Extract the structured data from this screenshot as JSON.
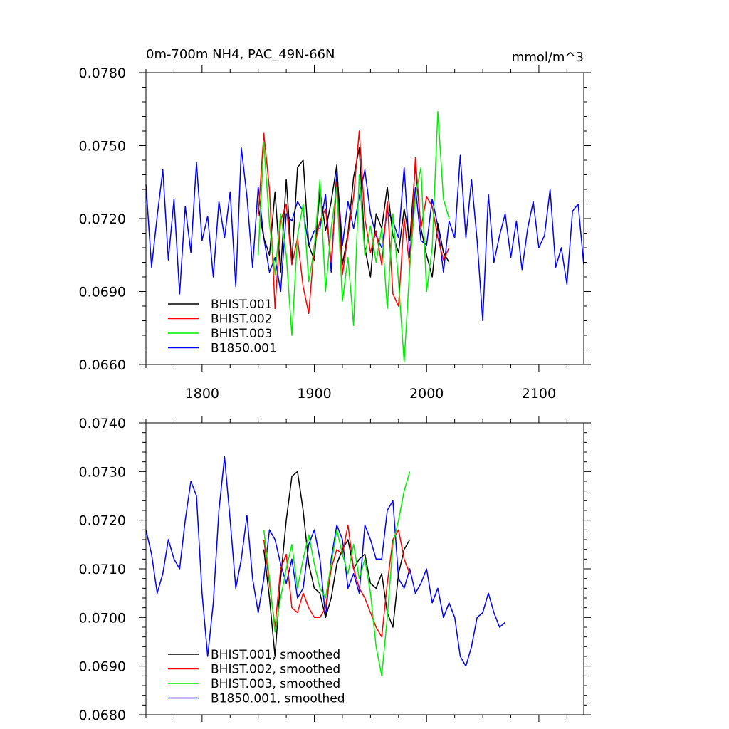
{
  "panels": [
    {
      "title_left": "0m-700m NH4, PAC_49N-66N",
      "title_right": "mmol/m^3",
      "y_ticks": [
        "0.0660",
        "0.0690",
        "0.0720",
        "0.0750",
        "0.0780"
      ],
      "x_ticks": [
        "1800",
        "1900",
        "2000",
        "2100"
      ],
      "legend": [
        "BHIST.001",
        "BHIST.002",
        "BHIST.003",
        "B1850.001"
      ]
    },
    {
      "y_ticks": [
        "0.0680",
        "0.0690",
        "0.0700",
        "0.0710",
        "0.0720",
        "0.0730",
        "0.0740"
      ],
      "legend": [
        "BHIST.001, smoothed",
        "BHIST.002, smoothed",
        "BHIST.003, smoothed",
        "B1850.001, smoothed"
      ]
    }
  ],
  "colors": {
    "BHIST.001": "#000000",
    "BHIST.002": "#ff0000",
    "BHIST.003": "#00ee00",
    "B1850.001": "#0000ff"
  },
  "chart_data": [
    {
      "type": "line",
      "title": "0m-700m NH4, PAC_49N-66N",
      "units": "mmol/m^3",
      "xlim": [
        1750,
        2140
      ],
      "ylim": [
        0.066,
        0.078
      ],
      "series": [
        {
          "name": "BHIST.001",
          "color": "#000000",
          "x_start": 1850,
          "x_step": 5,
          "values": [
            0.0725,
            0.0712,
            0.0705,
            0.0731,
            0.0698,
            0.0736,
            0.0702,
            0.0741,
            0.0744,
            0.0709,
            0.0703,
            0.0732,
            0.0715,
            0.0727,
            0.0742,
            0.0701,
            0.0714,
            0.0737,
            0.0749,
            0.0708,
            0.0696,
            0.0722,
            0.0716,
            0.0733,
            0.0713,
            0.0706,
            0.0724,
            0.0711,
            0.0742,
            0.0716,
            0.0705,
            0.0696,
            0.0718,
            0.0706,
            0.0702
          ]
        },
        {
          "name": "BHIST.002",
          "color": "#ff0000",
          "x_start": 1850,
          "x_step": 5,
          "values": [
            0.0721,
            0.0755,
            0.0732,
            0.0683,
            0.0719,
            0.0726,
            0.0701,
            0.0712,
            0.0692,
            0.0681,
            0.0709,
            0.0719,
            0.0724,
            0.0702,
            0.0735,
            0.0697,
            0.0713,
            0.0729,
            0.0756,
            0.072,
            0.0706,
            0.0715,
            0.0701,
            0.0727,
            0.0689,
            0.0684,
            0.072,
            0.07,
            0.0745,
            0.0716,
            0.0729,
            0.0725,
            0.0712,
            0.0703,
            0.0708
          ]
        },
        {
          "name": "BHIST.003",
          "color": "#00ee00",
          "x_start": 1850,
          "x_step": 5,
          "values": [
            0.0705,
            0.0751,
            0.0718,
            0.0697,
            0.0722,
            0.0705,
            0.0672,
            0.0713,
            0.0726,
            0.0694,
            0.0708,
            0.0736,
            0.069,
            0.0716,
            0.0733,
            0.0686,
            0.0704,
            0.0676,
            0.0738,
            0.0705,
            0.0717,
            0.0702,
            0.0716,
            0.0683,
            0.0722,
            0.0694,
            0.0661,
            0.07,
            0.0729,
            0.0741,
            0.069,
            0.0708,
            0.0764,
            0.0728,
            0.072
          ]
        },
        {
          "name": "B1850.001",
          "color": "#0000ff",
          "x_start": 1750,
          "x_step": 5,
          "values": [
            0.0734,
            0.07,
            0.0721,
            0.074,
            0.0703,
            0.0728,
            0.0689,
            0.0725,
            0.0706,
            0.0743,
            0.0711,
            0.0721,
            0.0696,
            0.0727,
            0.0712,
            0.0731,
            0.0692,
            0.0749,
            0.0729,
            0.07,
            0.0733,
            0.0712,
            0.0698,
            0.0704,
            0.069,
            0.0722,
            0.0719,
            0.0727,
            0.0723,
            0.0709,
            0.0715,
            0.0716,
            0.073,
            0.0698,
            0.074,
            0.0709,
            0.0727,
            0.0716,
            0.0729,
            0.074,
            0.0722,
            0.0713,
            0.0708,
            0.0723,
            0.0719,
            0.0712,
            0.0741,
            0.0704,
            0.0733,
            0.0711,
            0.0709,
            0.0728,
            0.0717,
            0.0698,
            0.0719,
            0.0712,
            0.0746,
            0.0712,
            0.0736,
            0.0711,
            0.0678,
            0.073,
            0.0702,
            0.0713,
            0.0722,
            0.0704,
            0.0719,
            0.0699,
            0.0716,
            0.0727,
            0.0708,
            0.0713,
            0.0732,
            0.07,
            0.0708,
            0.0693,
            0.0723,
            0.0726,
            0.0701
          ]
        }
      ]
    },
    {
      "type": "line",
      "xlim": [
        1750,
        2140
      ],
      "ylim": [
        0.068,
        0.074
      ],
      "series": [
        {
          "name": "BHIST.001, smoothed",
          "color": "#000000",
          "x_start": 1855,
          "x_step": 5,
          "values": [
            0.0714,
            0.0704,
            0.0692,
            0.0708,
            0.072,
            0.0729,
            0.073,
            0.0722,
            0.0711,
            0.0706,
            0.0705,
            0.07,
            0.0704,
            0.0711,
            0.0714,
            0.0716,
            0.071,
            0.0712,
            0.0713,
            0.0707,
            0.0706,
            0.0709,
            0.0701,
            0.0698,
            0.0709,
            0.0714,
            0.0716
          ]
        },
        {
          "name": "BHIST.002, smoothed",
          "color": "#ff0000",
          "x_start": 1855,
          "x_step": 5,
          "values": [
            0.0716,
            0.0707,
            0.0698,
            0.071,
            0.0713,
            0.0702,
            0.0701,
            0.0705,
            0.0702,
            0.07,
            0.07,
            0.0702,
            0.071,
            0.0714,
            0.0713,
            0.0719,
            0.071,
            0.0706,
            0.0704,
            0.0701,
            0.0698,
            0.0696,
            0.0707,
            0.0716,
            0.0718,
            0.0712,
            0.0709
          ]
        },
        {
          "name": "BHIST.003, smoothed",
          "color": "#00ee00",
          "x_start": 1855,
          "x_step": 5,
          "values": [
            0.0718,
            0.0708,
            0.0697,
            0.0704,
            0.071,
            0.0715,
            0.0706,
            0.0712,
            0.0717,
            0.0711,
            0.0706,
            0.0704,
            0.0711,
            0.0718,
            0.0713,
            0.0709,
            0.0715,
            0.0708,
            0.0712,
            0.0705,
            0.0694,
            0.0688,
            0.07,
            0.0715,
            0.072,
            0.0726,
            0.073
          ]
        },
        {
          "name": "B1850.001, smoothed",
          "color": "#0000ff",
          "x_start": 1750,
          "x_step": 5,
          "values": [
            0.0718,
            0.0713,
            0.0705,
            0.0709,
            0.0716,
            0.0712,
            0.071,
            0.072,
            0.0728,
            0.0725,
            0.0705,
            0.0692,
            0.0703,
            0.0722,
            0.0733,
            0.072,
            0.0706,
            0.0712,
            0.0721,
            0.0708,
            0.0701,
            0.0708,
            0.0718,
            0.0716,
            0.0711,
            0.0707,
            0.0712,
            0.0704,
            0.0706,
            0.0715,
            0.0718,
            0.0712,
            0.07,
            0.0712,
            0.0719,
            0.0716,
            0.0706,
            0.0709,
            0.0705,
            0.0719,
            0.0716,
            0.0712,
            0.0712,
            0.0722,
            0.0724,
            0.0708,
            0.0706,
            0.071,
            0.0705,
            0.0707,
            0.071,
            0.0703,
            0.0706,
            0.07,
            0.0703,
            0.07,
            0.0692,
            0.069,
            0.0694,
            0.07,
            0.0701,
            0.0705,
            0.0701,
            0.0698,
            0.0699
          ]
        }
      ]
    }
  ]
}
